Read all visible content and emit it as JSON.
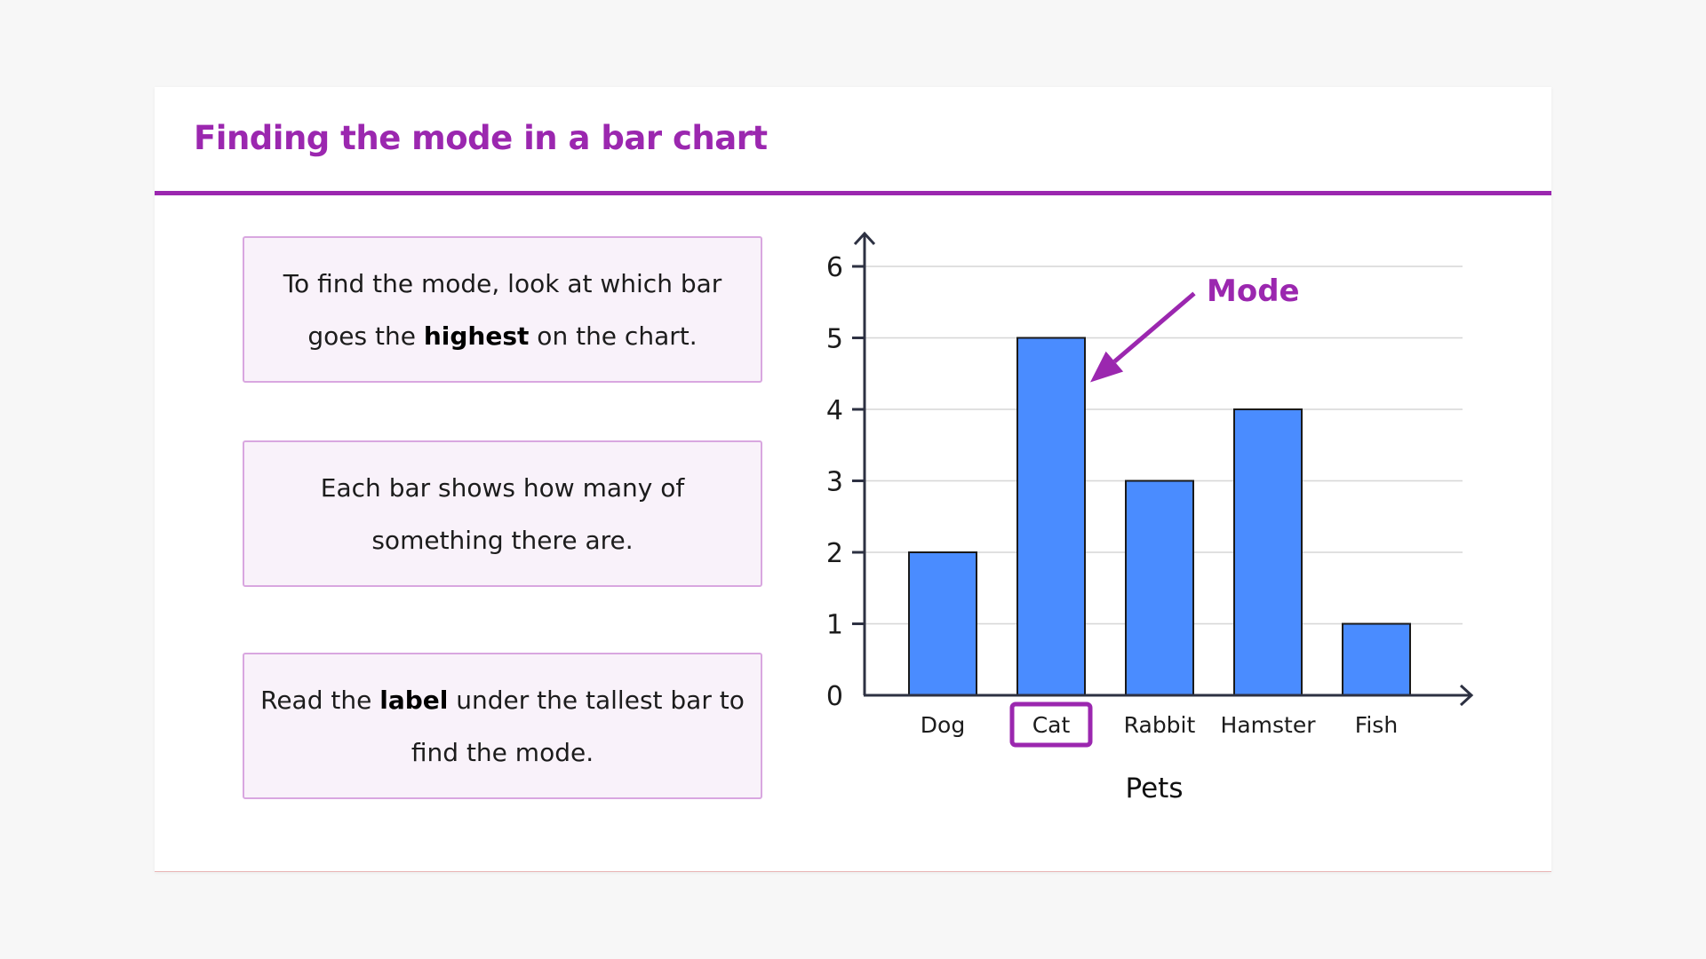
{
  "slide": {
    "title": "Finding the mode in a bar chart",
    "accent_color": "#9b27af"
  },
  "cards": [
    {
      "before": "To find the mode, look at which bar goes the ",
      "bold": "highest",
      "after": " on the chart."
    },
    {
      "before": "Each bar shows how many of something there are.",
      "bold": "",
      "after": ""
    },
    {
      "before": "Read the ",
      "bold": "label",
      "after": " under the tallest bar to find the mode."
    }
  ],
  "chart_data": {
    "type": "bar",
    "categories": [
      "Dog",
      "Cat",
      "Rabbit",
      "Hamster",
      "Fish"
    ],
    "values": [
      2,
      5,
      3,
      4,
      1
    ],
    "xlabel": "Pets",
    "ylabel": "",
    "ylim": [
      0,
      6
    ],
    "yticks": [
      0,
      1,
      2,
      3,
      4,
      5,
      6
    ],
    "grid": true,
    "bar_color": "#4a8cff",
    "annotation": {
      "text": "Mode",
      "points_to": "Cat",
      "highlight_category": "Cat",
      "color": "#9b27af"
    }
  }
}
